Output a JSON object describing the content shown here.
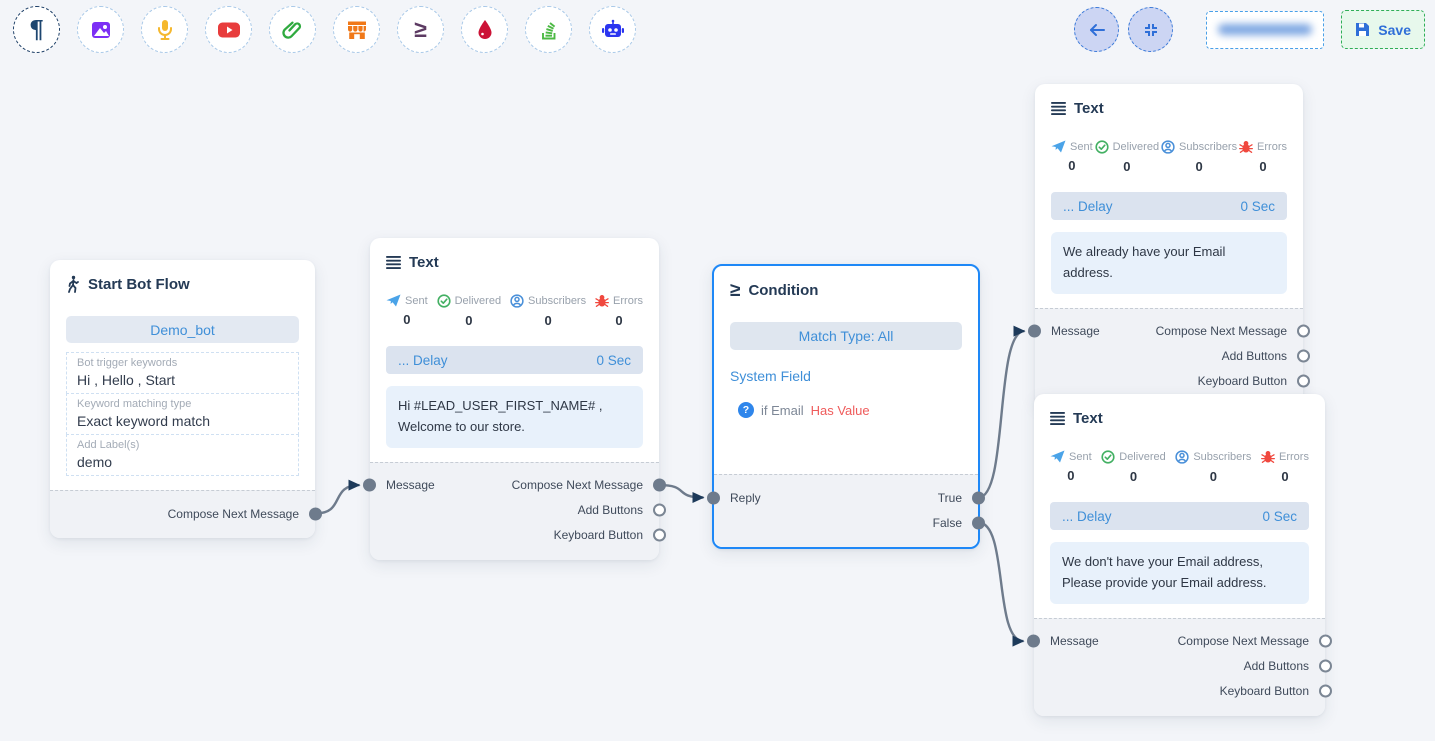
{
  "toolbar": {
    "items": [
      "pilcrow",
      "image",
      "microphone",
      "youtube",
      "paperclip",
      "store",
      "greater-equal",
      "drop",
      "stack",
      "robot"
    ]
  },
  "header": {
    "save_label": "Save"
  },
  "nodes": {
    "start": {
      "title": "Start Bot Flow",
      "bot_button": "Demo_bot",
      "fields": [
        {
          "label": "Bot trigger keywords",
          "value": "Hi , Hello , Start"
        },
        {
          "label": "Keyword matching type",
          "value": "Exact keyword match"
        },
        {
          "label": "Add Label(s)",
          "value": "demo"
        }
      ],
      "output": "Compose Next Message"
    },
    "text1": {
      "title": "Text",
      "stats": [
        {
          "label": "Sent",
          "value": "0"
        },
        {
          "label": "Delivered",
          "value": "0"
        },
        {
          "label": "Subscribers",
          "value": "0"
        },
        {
          "label": "Errors",
          "value": "0"
        }
      ],
      "delay_label": "... Delay",
      "delay_value": "0 Sec",
      "message": "Hi  #LEAD_USER_FIRST_NAME# , Welcome to our store.",
      "input_label": "Message",
      "outputs": [
        "Compose Next Message",
        "Add Buttons",
        "Keyboard Button"
      ]
    },
    "condition": {
      "title": "Condition",
      "match_type": "Match Type: All",
      "section_label": "System Field",
      "condition_text": "if Email",
      "condition_value": "Has Value",
      "input_label": "Reply",
      "outputs": [
        "True",
        "False"
      ]
    },
    "text2": {
      "title": "Text",
      "stats": [
        {
          "label": "Sent",
          "value": "0"
        },
        {
          "label": "Delivered",
          "value": "0"
        },
        {
          "label": "Subscribers",
          "value": "0"
        },
        {
          "label": "Errors",
          "value": "0"
        }
      ],
      "delay_label": "... Delay",
      "delay_value": "0 Sec",
      "message": "We already have your Email address.",
      "input_label": "Message",
      "outputs": [
        "Compose Next Message",
        "Add Buttons",
        "Keyboard Button"
      ]
    },
    "text3": {
      "title": "Text",
      "stats": [
        {
          "label": "Sent",
          "value": "0"
        },
        {
          "label": "Delivered",
          "value": "0"
        },
        {
          "label": "Subscribers",
          "value": "0"
        },
        {
          "label": "Errors",
          "value": "0"
        }
      ],
      "delay_label": "... Delay",
      "delay_value": "0 Sec",
      "message": "We don't have your Email address, Please provide your Email address.",
      "input_label": "Message",
      "outputs": [
        "Compose Next Message",
        "Add Buttons",
        "Keyboard Button"
      ]
    }
  },
  "edges": [
    {
      "from": "start-compose-out",
      "to": "text1-message-in"
    },
    {
      "from": "text1-compose-out",
      "to": "condition-reply-in"
    },
    {
      "from": "condition-true-out",
      "to": "text2-message-in"
    },
    {
      "from": "condition-false-out",
      "to": "text3-message-in"
    }
  ],
  "colors": {
    "accent": "#2f86eb",
    "connector": "#6e7b8c",
    "arrow": "#1d3a5a",
    "error_red": "#ee5253",
    "save_green": "#2fae57"
  }
}
